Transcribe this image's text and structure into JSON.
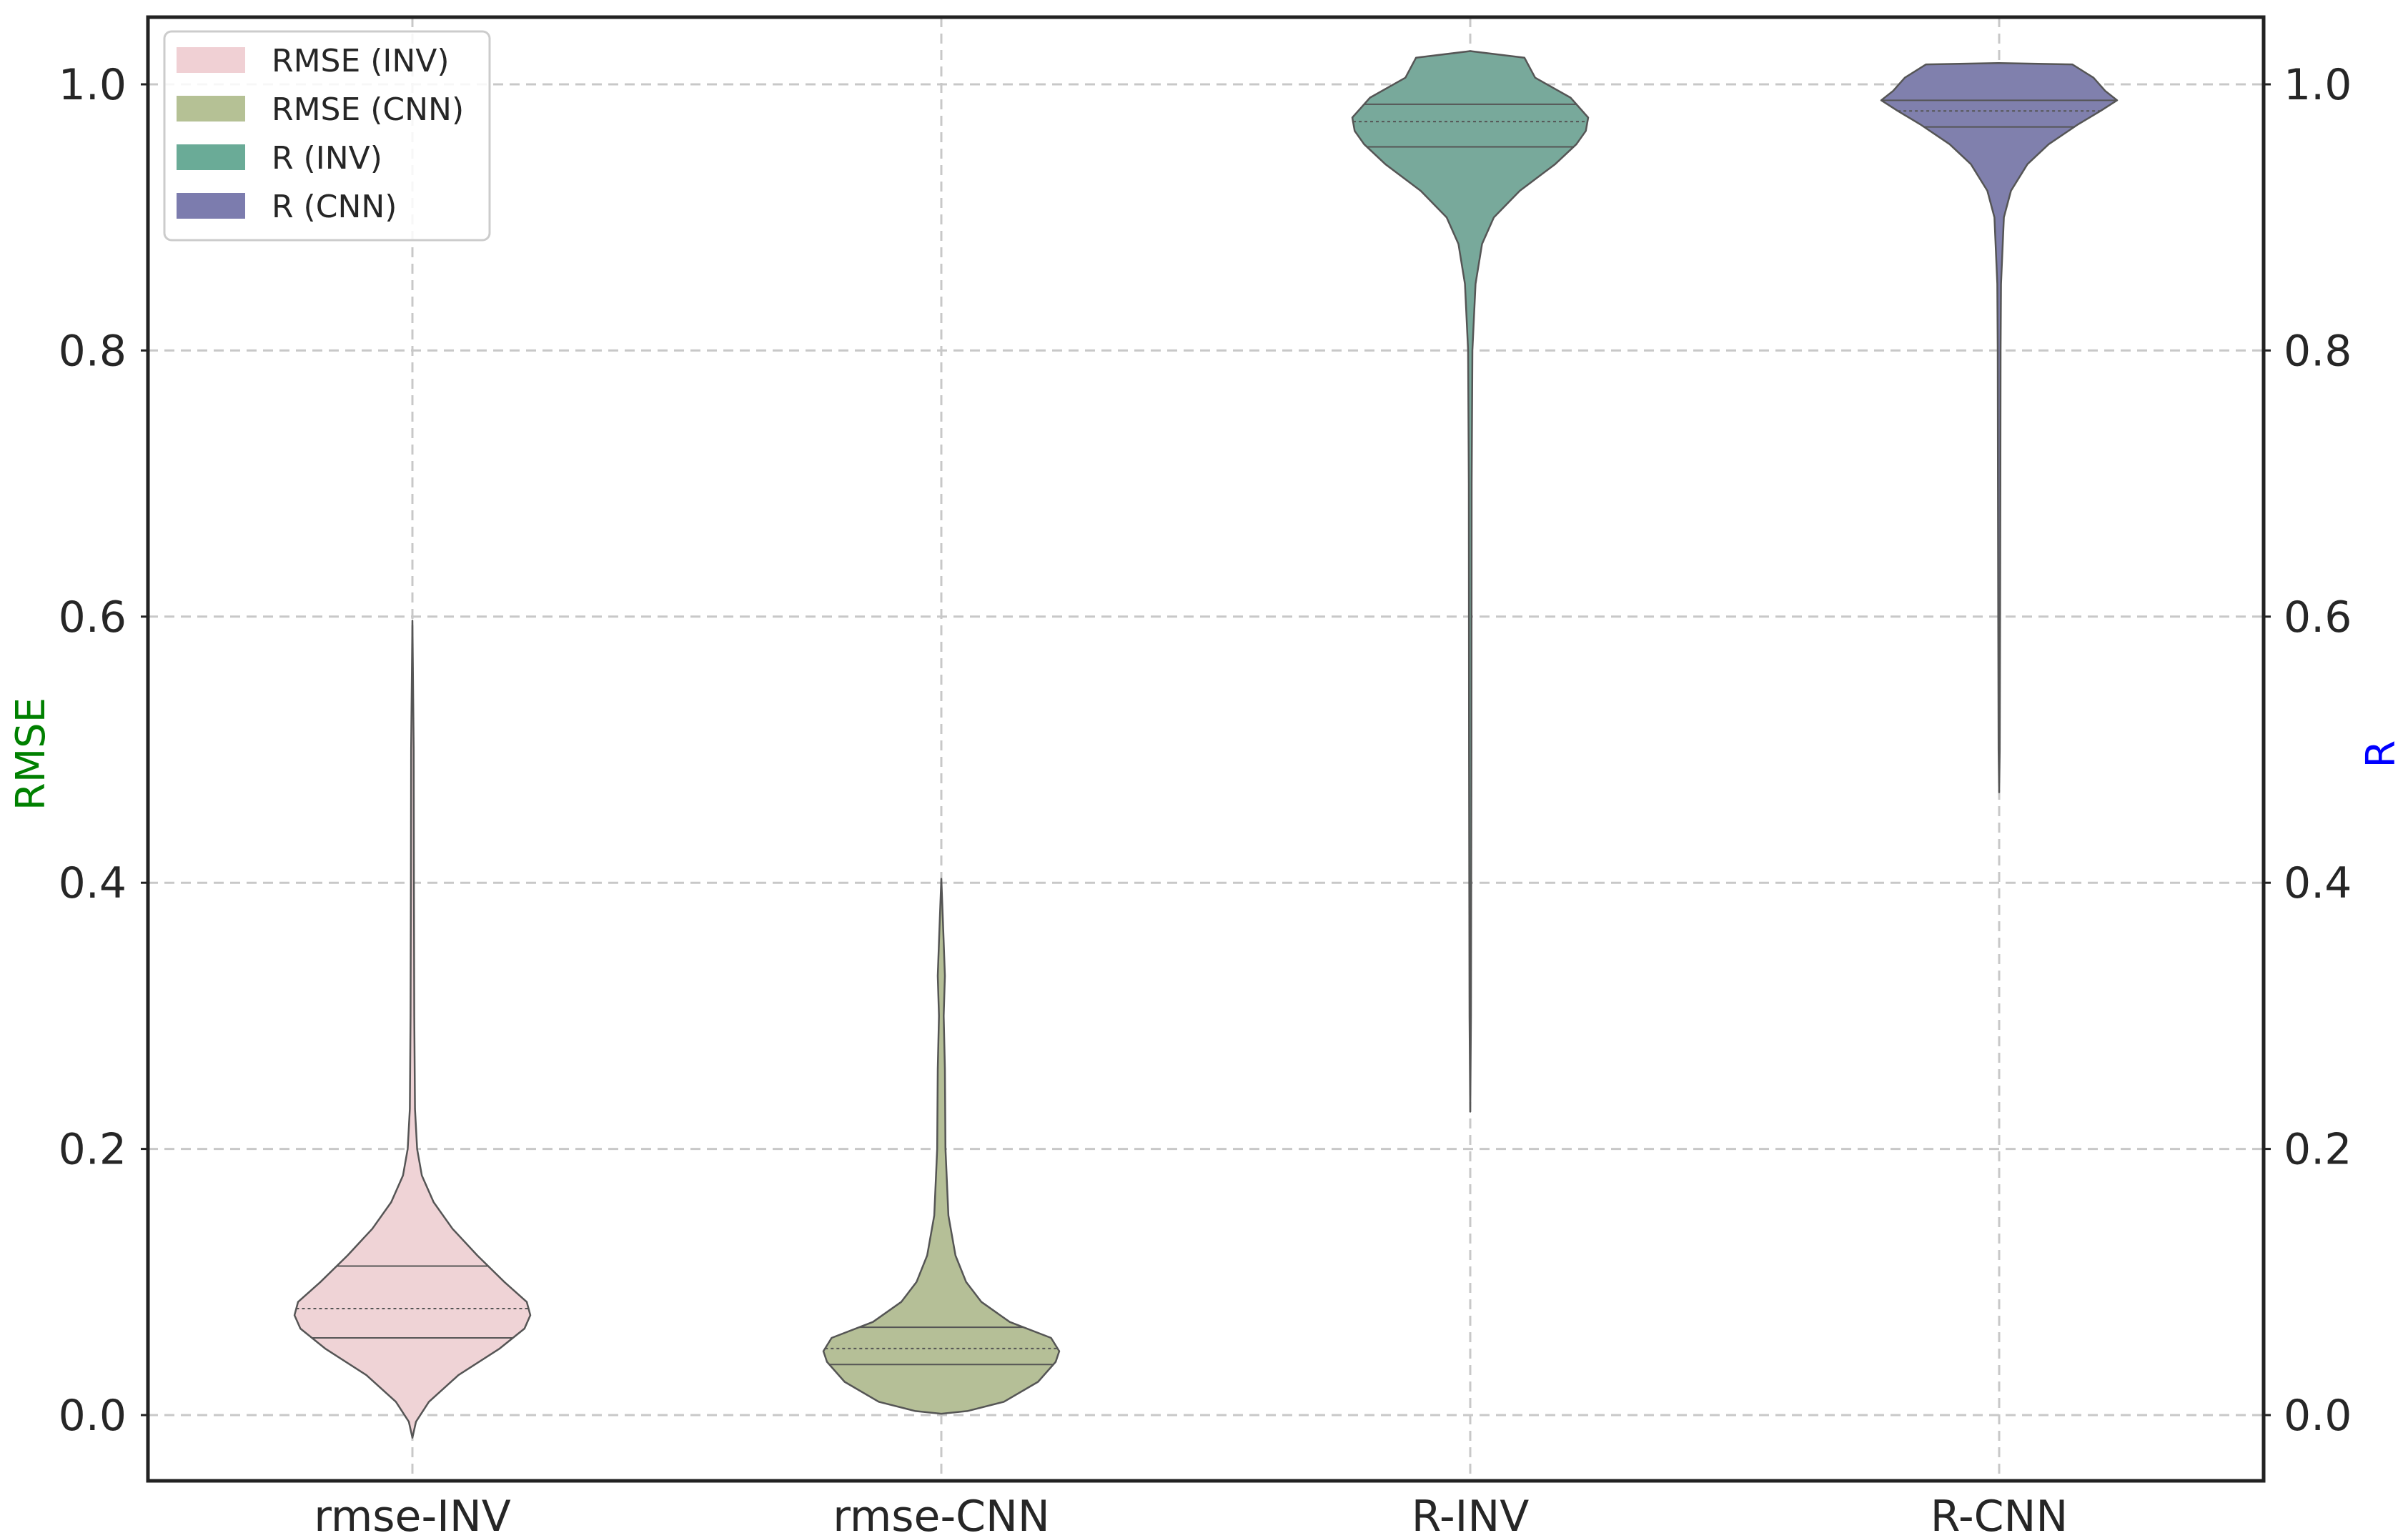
{
  "chart_data": {
    "type": "violin",
    "categories": [
      "rmse-INV",
      "rmse-CNN",
      "R-INV",
      "R-CNN"
    ],
    "left_axis": {
      "label": "RMSE",
      "label_color": "#008000",
      "ticks": [
        "0.0",
        "0.2",
        "0.4",
        "0.6",
        "0.8",
        "1.0"
      ],
      "ylim": [
        -0.05,
        1.05
      ]
    },
    "right_axis": {
      "label": "R",
      "label_color": "#0000ff",
      "ticks": [
        "0.0",
        "0.2",
        "0.4",
        "0.6",
        "0.8",
        "1.0"
      ],
      "ylim": [
        -0.05,
        1.05
      ]
    },
    "grid": true,
    "legend": {
      "placement": "top-left",
      "entries": [
        {
          "label": "RMSE (INV)",
          "color": "#f0d0d4"
        },
        {
          "label": "RMSE (CNN)",
          "color": "#b5c195"
        },
        {
          "label": "R (INV)",
          "color": "#6aab97"
        },
        {
          "label": "R (CNN)",
          "color": "#7c7cae"
        }
      ]
    },
    "series": [
      {
        "category": "rmse-INV",
        "fill": "#efd3d6",
        "quartiles": [
          0.058,
          0.08,
          0.112
        ],
        "density": [
          [
            -0.017,
            0.0
          ],
          [
            -0.005,
            0.03
          ],
          [
            0.01,
            0.14
          ],
          [
            0.03,
            0.39
          ],
          [
            0.05,
            0.74
          ],
          [
            0.065,
            0.95
          ],
          [
            0.075,
            1.0
          ],
          [
            0.085,
            0.97
          ],
          [
            0.1,
            0.78
          ],
          [
            0.12,
            0.55
          ],
          [
            0.14,
            0.34
          ],
          [
            0.16,
            0.18
          ],
          [
            0.18,
            0.08
          ],
          [
            0.2,
            0.04
          ],
          [
            0.23,
            0.022
          ],
          [
            0.3,
            0.016
          ],
          [
            0.4,
            0.013
          ],
          [
            0.5,
            0.011
          ],
          [
            0.597,
            0.0
          ]
        ]
      },
      {
        "category": "rmse-CNN",
        "fill": "#b5bf97",
        "quartiles": [
          0.038,
          0.05,
          0.066
        ],
        "density": [
          [
            0.001,
            0.0
          ],
          [
            0.003,
            0.22
          ],
          [
            0.01,
            0.53
          ],
          [
            0.025,
            0.82
          ],
          [
            0.04,
            0.97
          ],
          [
            0.048,
            1.0
          ],
          [
            0.058,
            0.93
          ],
          [
            0.07,
            0.58
          ],
          [
            0.085,
            0.34
          ],
          [
            0.1,
            0.21
          ],
          [
            0.12,
            0.12
          ],
          [
            0.15,
            0.06
          ],
          [
            0.2,
            0.035
          ],
          [
            0.26,
            0.03
          ],
          [
            0.3,
            0.02
          ],
          [
            0.33,
            0.03
          ],
          [
            0.36,
            0.018
          ],
          [
            0.403,
            0.0
          ]
        ]
      },
      {
        "category": "R-INV",
        "fill": "#78a99b",
        "quartiles": [
          0.953,
          0.972,
          0.985
        ],
        "density": [
          [
            0.228,
            0.0
          ],
          [
            0.3,
            0.006
          ],
          [
            0.5,
            0.01
          ],
          [
            0.7,
            0.012
          ],
          [
            0.8,
            0.018
          ],
          [
            0.85,
            0.045
          ],
          [
            0.88,
            0.1
          ],
          [
            0.9,
            0.2
          ],
          [
            0.92,
            0.42
          ],
          [
            0.94,
            0.72
          ],
          [
            0.955,
            0.9
          ],
          [
            0.965,
            0.98
          ],
          [
            0.975,
            1.0
          ],
          [
            0.99,
            0.85
          ],
          [
            1.005,
            0.55
          ],
          [
            1.02,
            0.46
          ],
          [
            1.025,
            0.0
          ]
        ]
      },
      {
        "category": "R-CNN",
        "fill": "#8080ad",
        "quartiles": [
          0.968,
          0.98,
          0.988
        ],
        "density": [
          [
            0.468,
            0.0
          ],
          [
            0.5,
            0.005
          ],
          [
            0.6,
            0.008
          ],
          [
            0.7,
            0.01
          ],
          [
            0.8,
            0.012
          ],
          [
            0.85,
            0.016
          ],
          [
            0.9,
            0.04
          ],
          [
            0.92,
            0.1
          ],
          [
            0.94,
            0.24
          ],
          [
            0.955,
            0.42
          ],
          [
            0.97,
            0.67
          ],
          [
            0.98,
            0.86
          ],
          [
            0.988,
            1.0
          ],
          [
            0.995,
            0.9
          ],
          [
            1.005,
            0.8
          ],
          [
            1.015,
            0.62
          ],
          [
            1.016,
            0.0
          ]
        ]
      }
    ]
  }
}
